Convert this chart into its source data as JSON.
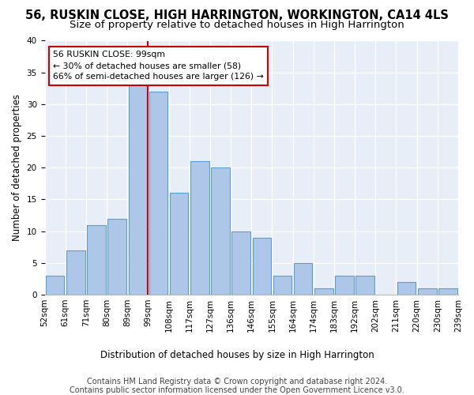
{
  "title1": "56, RUSKIN CLOSE, HIGH HARRINGTON, WORKINGTON, CA14 4LS",
  "title2": "Size of property relative to detached houses in High Harrington",
  "xlabel": "Distribution of detached houses by size in High Harrington",
  "ylabel": "Number of detached properties",
  "bins": [
    "52sqm",
    "61sqm",
    "71sqm",
    "80sqm",
    "89sqm",
    "99sqm",
    "108sqm",
    "117sqm",
    "127sqm",
    "136sqm",
    "146sqm",
    "155sqm",
    "164sqm",
    "174sqm",
    "183sqm",
    "192sqm",
    "202sqm",
    "211sqm",
    "220sqm",
    "230sqm",
    "239sqm"
  ],
  "values": [
    3,
    7,
    11,
    12,
    33,
    32,
    16,
    21,
    20,
    10,
    9,
    3,
    5,
    1,
    3,
    3,
    0,
    2,
    1,
    1
  ],
  "bar_color": "#aec6e8",
  "bar_edge_color": "#5a9fd4",
  "annotation_text": "56 RUSKIN CLOSE: 99sqm\n← 30% of detached houses are smaller (58)\n66% of semi-detached houses are larger (126) →",
  "annotation_box_color": "#ffffff",
  "annotation_box_edge_color": "#cc0000",
  "vline_color": "#cc0000",
  "footer1": "Contains HM Land Registry data © Crown copyright and database right 2024.",
  "footer2": "Contains public sector information licensed under the Open Government Licence v3.0.",
  "ylim": [
    0,
    40
  ],
  "background_color": "#e8eef8",
  "grid_color": "#ffffff",
  "title1_fontsize": 10.5,
  "title2_fontsize": 9.5,
  "xlabel_fontsize": 8.5,
  "ylabel_fontsize": 8.5,
  "tick_fontsize": 7.5,
  "footer_fontsize": 7.0
}
